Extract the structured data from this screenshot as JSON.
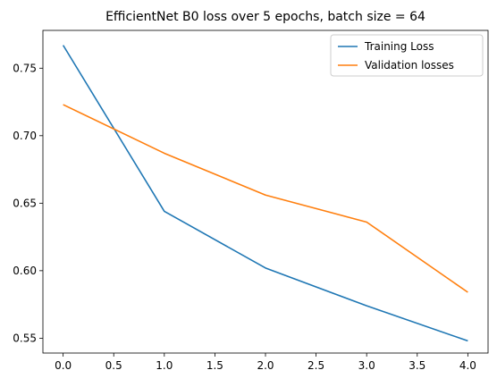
{
  "chart_data": {
    "type": "line",
    "title": "EfficientNet B0 loss over 5 epochs, batch size = 64",
    "xlabel": "",
    "ylabel": "",
    "x": [
      0,
      1,
      2,
      3,
      4
    ],
    "xlim": [
      -0.2,
      4.2
    ],
    "ylim": [
      0.539,
      0.778
    ],
    "xticks": [
      0.0,
      0.5,
      1.0,
      1.5,
      2.0,
      2.5,
      3.0,
      3.5,
      4.0
    ],
    "xtick_labels": [
      "0.0",
      "0.5",
      "1.0",
      "1.5",
      "2.0",
      "2.5",
      "3.0",
      "3.5",
      "4.0"
    ],
    "yticks": [
      0.55,
      0.6,
      0.65,
      0.7,
      0.75
    ],
    "ytick_labels": [
      "0.55",
      "0.60",
      "0.65",
      "0.70",
      "0.75"
    ],
    "grid": false,
    "legend_position": "top-right",
    "series": [
      {
        "name": "Training Loss",
        "color": "#1f77b4",
        "values": [
          0.767,
          0.644,
          0.602,
          0.574,
          0.548
        ]
      },
      {
        "name": "Validation losses",
        "color": "#ff7f0e",
        "values": [
          0.723,
          0.687,
          0.656,
          0.636,
          0.584
        ]
      }
    ]
  }
}
